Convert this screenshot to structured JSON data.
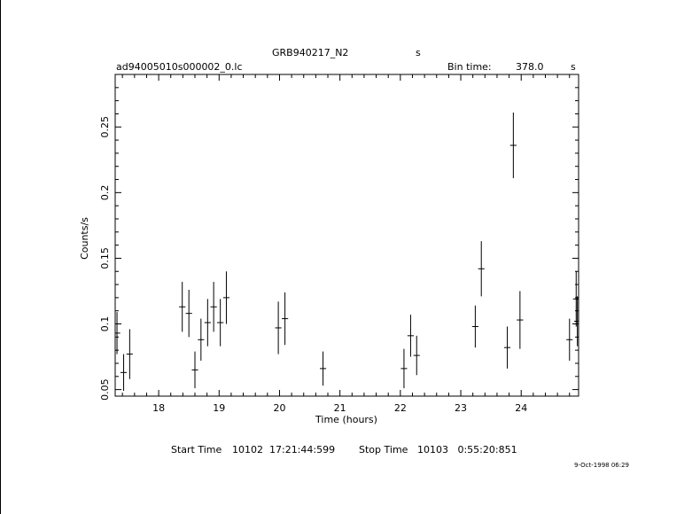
{
  "header": {
    "object": "GRB940217_N2",
    "instrument_mark": "s",
    "filename": "ad94005010s000002_0.lc",
    "bin_time_label": "Bin time:",
    "bin_time_value": "378.0",
    "bin_time_unit": "s"
  },
  "footer": {
    "start_label": "Start Time",
    "start_value": "10102  17:21:44:599",
    "stop_label": "Stop Time",
    "stop_value": "10103   0:55:20:851",
    "date_stamp": "9-Oct-1998 06:29"
  },
  "chart_data": {
    "type": "scatter",
    "title": "GRB940217_N2",
    "xlabel": "Time (hours)",
    "ylabel": "Counts/s",
    "xlim": [
      17.28,
      24.95
    ],
    "ylim": [
      0.045,
      0.29
    ],
    "xticks": [
      18,
      19,
      20,
      21,
      22,
      23,
      24
    ],
    "yticks": [
      0.05,
      0.1,
      0.15,
      0.2,
      0.25
    ],
    "ytick_labels": [
      "0.05",
      "0.1",
      "0.15",
      "0.2",
      "0.25"
    ],
    "grid": false,
    "series": [
      {
        "x_error": 0.0525,
        "points": [
          {
            "x": 17.31,
            "y": 0.093,
            "err": 0.016
          },
          {
            "x": 17.42,
            "y": 0.063,
            "err": 0.014
          },
          {
            "x": 17.52,
            "y": 0.077,
            "err": 0.019
          },
          {
            "x": 18.39,
            "y": 0.113,
            "err": 0.019
          },
          {
            "x": 18.5,
            "y": 0.108,
            "err": 0.018
          },
          {
            "x": 18.6,
            "y": 0.065,
            "err": 0.014
          },
          {
            "x": 18.7,
            "y": 0.088,
            "err": 0.016
          },
          {
            "x": 18.81,
            "y": 0.101,
            "err": 0.018
          },
          {
            "x": 18.91,
            "y": 0.113,
            "err": 0.019
          },
          {
            "x": 19.02,
            "y": 0.101,
            "err": 0.018
          },
          {
            "x": 19.12,
            "y": 0.12,
            "err": 0.02
          },
          {
            "x": 19.98,
            "y": 0.097,
            "err": 0.02
          },
          {
            "x": 20.09,
            "y": 0.104,
            "err": 0.02
          },
          {
            "x": 20.72,
            "y": 0.066,
            "err": 0.013
          },
          {
            "x": 22.06,
            "y": 0.066,
            "err": 0.015
          },
          {
            "x": 22.17,
            "y": 0.091,
            "err": 0.016
          },
          {
            "x": 22.27,
            "y": 0.076,
            "err": 0.015
          },
          {
            "x": 23.24,
            "y": 0.098,
            "err": 0.016
          },
          {
            "x": 23.34,
            "y": 0.142,
            "err": 0.021
          },
          {
            "x": 23.77,
            "y": 0.082,
            "err": 0.016
          },
          {
            "x": 23.87,
            "y": 0.236,
            "err": 0.025
          },
          {
            "x": 23.98,
            "y": 0.103,
            "err": 0.022
          },
          {
            "x": 24.8,
            "y": 0.088,
            "err": 0.016
          },
          {
            "x": 24.91,
            "y": 0.119,
            "err": 0.021
          },
          {
            "x": 24.93,
            "y": 0.102,
            "err": 0.019
          }
        ]
      }
    ]
  }
}
